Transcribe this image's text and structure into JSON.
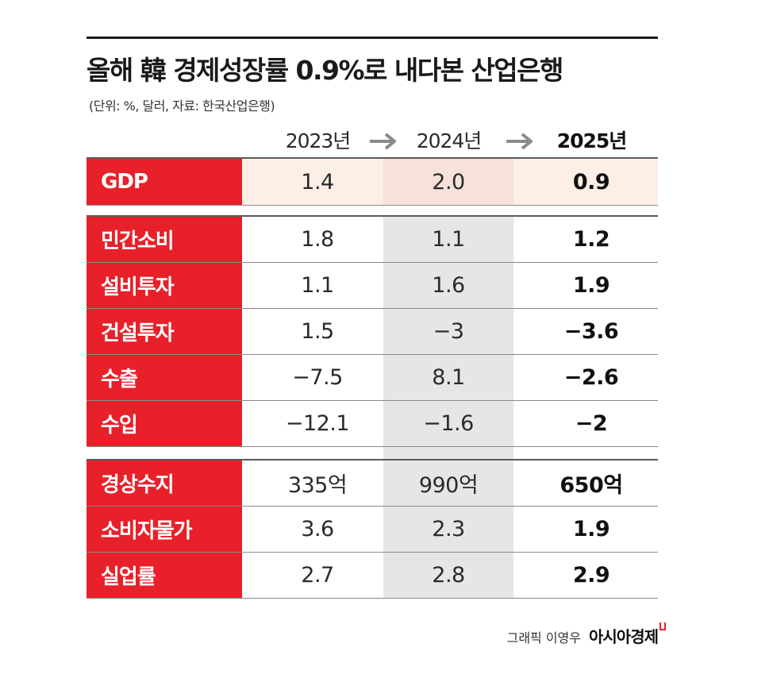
{
  "title": "올해 韓 경제성장률 0.9%로 내다본 산업은행",
  "subtitle": "(단위: %, 달러, 자료: 한국산업은행)",
  "years": [
    "2023년",
    "2024년",
    "2025년"
  ],
  "rows": [
    {
      "label": "GDP",
      "values": [
        "1.4",
        "2.0",
        "0.9"
      ]
    },
    {
      "label": "민간소비",
      "values": [
        "1.8",
        "1.1",
        "1.2"
      ]
    },
    {
      "label": "설비투자",
      "values": [
        "1.1",
        "1.6",
        "1.9"
      ]
    },
    {
      "label": "건설투자",
      "values": [
        "1.5",
        "−3",
        "−3.6"
      ]
    },
    {
      "label": "수출",
      "values": [
        "−7.5",
        "8.1",
        "−2.6"
      ]
    },
    {
      "label": "수입",
      "values": [
        "−12.1",
        "−1.6",
        "−2"
      ]
    },
    {
      "label": "경상수지",
      "values": [
        "335억",
        "990억",
        "650억"
      ]
    },
    {
      "label": "소비자물가",
      "values": [
        "3.6",
        "2.3",
        "1.9"
      ]
    },
    {
      "label": "실업률",
      "values": [
        "2.7",
        "2.8",
        "2.9"
      ]
    }
  ],
  "credit": "그래픽 이영우",
  "brand": "아시아경제",
  "colors": {
    "accent": "#e8202a",
    "highlight_band": "#fdeee6",
    "column_2024": "#e6e6e6"
  },
  "chart_data": {
    "type": "table",
    "title": "올해 韓 경제성장률 0.9%로 내다본 산업은행",
    "subtitle": "(단위: %, 달러, 자료: 한국산업은행)",
    "columns": [
      "2023년",
      "2024년",
      "2025년"
    ],
    "rows": [
      {
        "label": "GDP",
        "values": [
          1.4,
          2.0,
          0.9
        ]
      },
      {
        "label": "민간소비",
        "values": [
          1.8,
          1.1,
          1.2
        ]
      },
      {
        "label": "설비투자",
        "values": [
          1.1,
          1.6,
          1.9
        ]
      },
      {
        "label": "건설투자",
        "values": [
          1.5,
          -3,
          -3.6
        ]
      },
      {
        "label": "수출",
        "values": [
          -7.5,
          8.1,
          -2.6
        ]
      },
      {
        "label": "수입",
        "values": [
          -12.1,
          -1.6,
          -2
        ]
      },
      {
        "label": "경상수지",
        "values": [
          "335억",
          "990억",
          "650억"
        ]
      },
      {
        "label": "소비자물가",
        "values": [
          3.6,
          2.3,
          1.9
        ]
      },
      {
        "label": "실업률",
        "values": [
          2.7,
          2.8,
          2.9
        ]
      }
    ]
  }
}
